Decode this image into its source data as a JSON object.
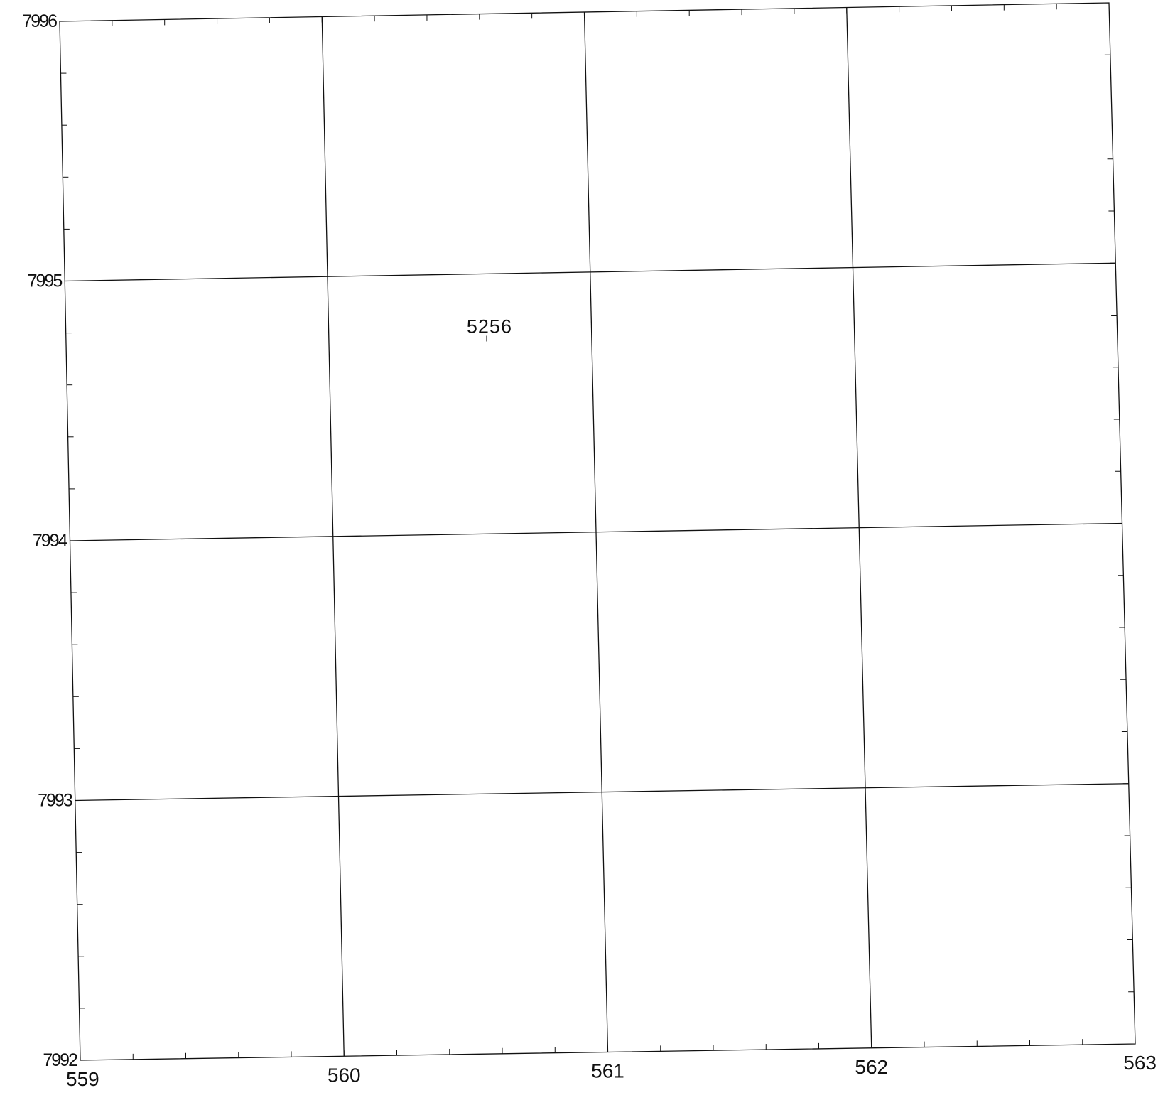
{
  "map": {
    "x_range": [
      559,
      563
    ],
    "y_range": [
      7992,
      7996
    ],
    "x_ticks": [
      "559",
      "560",
      "561",
      "562",
      "563"
    ],
    "y_ticks": [
      "7996",
      "7995",
      "7994",
      "7993",
      "7992"
    ],
    "x_values": [
      559,
      560,
      561,
      562,
      563
    ],
    "y_values": [
      7996,
      7995,
      7994,
      7993,
      7992
    ],
    "minor_tick_step": 0.2,
    "grid": true,
    "points": [
      {
        "label": "5256",
        "x": 560.6,
        "y": 7994.74
      }
    ],
    "line_color": "#111111",
    "background": "#ffffff"
  }
}
